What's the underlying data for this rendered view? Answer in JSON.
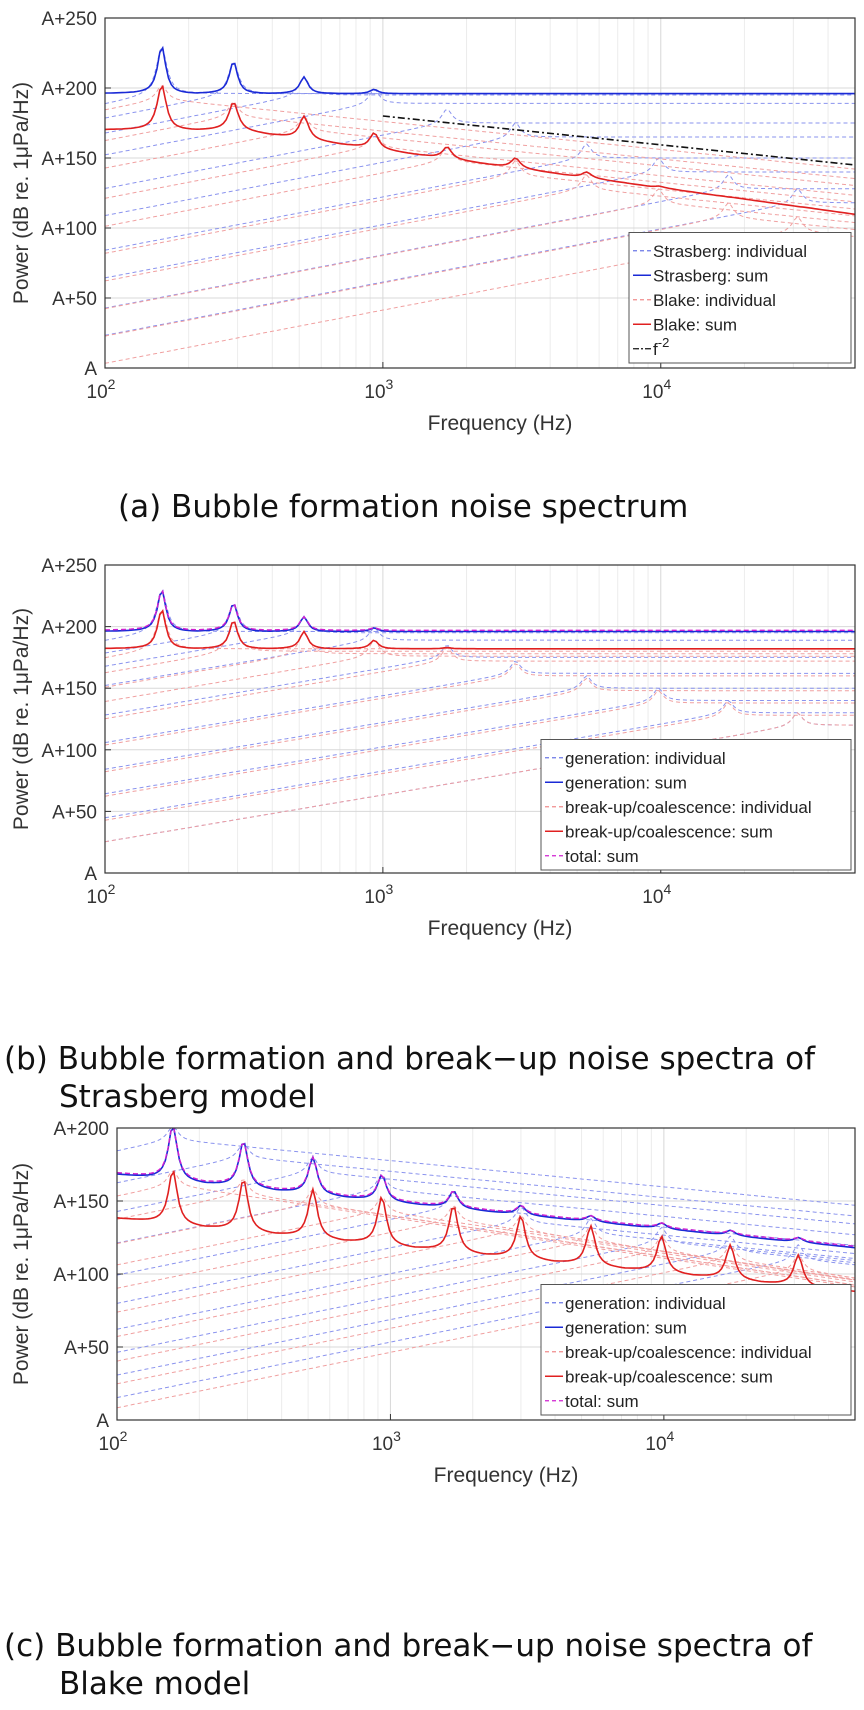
{
  "chart_data": [
    {
      "type": "line",
      "panel": "a",
      "title": "",
      "caption_prefix": "(a)",
      "caption_lines": [
        "Bubble formation noise spectrum"
      ],
      "xlabel": "Frequency (Hz)",
      "ylabel": "Power (dB re. 1μPa/Hz)",
      "xscale": "log",
      "xlim": [
        100,
        50000
      ],
      "ylim": [
        0,
        250
      ],
      "xticks": [
        {
          "value": 100,
          "base": "10",
          "exp": "2"
        },
        {
          "value": 1000,
          "base": "10",
          "exp": "3"
        },
        {
          "value": 10000,
          "base": "10",
          "exp": "4"
        }
      ],
      "yticks": [
        {
          "value": 0,
          "label": "A"
        },
        {
          "value": 50,
          "label": "A+50"
        },
        {
          "value": 100,
          "label": "A+100"
        },
        {
          "value": 150,
          "label": "A+150"
        },
        {
          "value": 200,
          "label": "A+200"
        },
        {
          "value": 250,
          "label": "A+250"
        }
      ],
      "grid": true,
      "legend_position": "lower-right",
      "legend": [
        {
          "label": "Strasberg: individual",
          "color": "#6b78e6",
          "style": "dashed"
        },
        {
          "label": "Strasberg: sum",
          "color": "#1a2ad6",
          "style": "solid"
        },
        {
          "label": "Blake: individual",
          "color": "#f08c8c",
          "style": "dashed"
        },
        {
          "label": "Blake: sum",
          "color": "#e02020",
          "style": "solid"
        },
        {
          "label": "f",
          "sup": "-2",
          "color": "#111111",
          "style": "dashdot"
        }
      ],
      "modes_hz": [
        160,
        290,
        520,
        930,
        1700,
        3000,
        5400,
        9800,
        17500,
        31000
      ],
      "strasberg": {
        "individual_color": "#8a93ee",
        "sum_color": "#1a2ad6",
        "individual_peaks": [
          230,
          219,
          208,
          199,
          185,
          175,
          160,
          150,
          138,
          128
        ],
        "individual_plateaus": [
          196,
          196,
          195,
          195,
          190,
          186,
          180,
          176,
          170,
          165
        ],
        "sum_peaks": [
          230,
          219,
          208,
          199
        ],
        "sum_plateau": 196
      },
      "blake": {
        "individual_color": "#f0a0a0",
        "sum_color": "#e02020",
        "individual_peaks": [
          202,
          190,
          180,
          168,
          158,
          148,
          138,
          128,
          118,
          108
        ],
        "sum_peaks": [
          202,
          190,
          180,
          168,
          158,
          150,
          140,
          130,
          122,
          115
        ],
        "sum_at_xmax": 122
      },
      "f_minus2": {
        "x": [
          1000,
          50000
        ],
        "y": [
          180,
          145
        ],
        "color": "#111111"
      }
    },
    {
      "type": "line",
      "panel": "b",
      "title": "",
      "caption_prefix": "(b)",
      "caption_lines": [
        "Bubble formation and break−up noise spectra of",
        "Strasberg model"
      ],
      "xlabel": "Frequency (Hz)",
      "ylabel": "Power (dB re. 1μPa/Hz)",
      "xscale": "log",
      "xlim": [
        100,
        50000
      ],
      "ylim": [
        0,
        250
      ],
      "xticks": [
        {
          "value": 100,
          "base": "10",
          "exp": "2"
        },
        {
          "value": 1000,
          "base": "10",
          "exp": "3"
        },
        {
          "value": 10000,
          "base": "10",
          "exp": "4"
        }
      ],
      "yticks": [
        {
          "value": 0,
          "label": "A"
        },
        {
          "value": 50,
          "label": "A+50"
        },
        {
          "value": 100,
          "label": "A+100"
        },
        {
          "value": 150,
          "label": "A+150"
        },
        {
          "value": 200,
          "label": "A+200"
        },
        {
          "value": 250,
          "label": "A+250"
        }
      ],
      "grid": true,
      "legend_position": "lower-right",
      "legend": [
        {
          "label": "generation: individual",
          "color": "#6b78e6",
          "style": "dashed"
        },
        {
          "label": "generation: sum",
          "color": "#1a2ad6",
          "style": "solid"
        },
        {
          "label": "break-up/coalescence: individual",
          "color": "#f08c8c",
          "style": "dashed"
        },
        {
          "label": "break-up/coalescence: sum",
          "color": "#e02020",
          "style": "solid"
        },
        {
          "label": "total: sum",
          "color": "#d020d0",
          "style": "dashed"
        }
      ],
      "modes_hz": [
        160,
        290,
        520,
        930,
        1700,
        3000,
        5400,
        9800,
        17500,
        31000
      ],
      "generation": {
        "individual_color": "#8a93ee",
        "sum_color": "#1a2ad6",
        "individual_peaks": [
          230,
          219,
          208,
          199,
          185,
          172,
          160,
          150,
          140,
          130
        ],
        "individual_plateaus": [
          196,
          196,
          195,
          195,
          190,
          186,
          180,
          176,
          170,
          165
        ],
        "sum_peaks": [
          230,
          219,
          208,
          199
        ],
        "sum_plateau": 196
      },
      "breakup": {
        "individual_color": "#f0a0a0",
        "sum_color": "#e02020",
        "individual_peaks": [
          214,
          205,
          196,
          189,
          183,
          170,
          158,
          148,
          138,
          130
        ],
        "individual_plateaus": [
          182,
          180,
          178,
          176,
          172,
          166,
          160,
          156,
          150,
          146
        ],
        "sum_peaks": [
          214,
          205,
          196,
          189,
          183
        ],
        "sum_plateau": 182
      },
      "total": {
        "color": "#d020d0",
        "peaks": [
          230,
          219,
          208,
          199
        ],
        "plateau": 197
      }
    },
    {
      "type": "line",
      "panel": "c",
      "title": "",
      "caption_prefix": "(c)",
      "caption_lines": [
        "Bubble formation and break−up noise spectra of",
        "Blake model"
      ],
      "xlabel": "Frequency (Hz)",
      "ylabel": "Power (dB re. 1μPa/Hz)",
      "xscale": "log",
      "xlim": [
        100,
        50000
      ],
      "ylim": [
        0,
        200
      ],
      "xticks": [
        {
          "value": 100,
          "base": "10",
          "exp": "2"
        },
        {
          "value": 1000,
          "base": "10",
          "exp": "3"
        },
        {
          "value": 10000,
          "base": "10",
          "exp": "4"
        }
      ],
      "yticks": [
        {
          "value": 0,
          "label": "A"
        },
        {
          "value": 50,
          "label": "A+50"
        },
        {
          "value": 100,
          "label": "A+100"
        },
        {
          "value": 150,
          "label": "A+150"
        },
        {
          "value": 200,
          "label": "A+200"
        }
      ],
      "grid": true,
      "legend_position": "lower-right",
      "legend": [
        {
          "label": "generation: individual",
          "color": "#6b78e6",
          "style": "dashed"
        },
        {
          "label": "generation: sum",
          "color": "#1a2ad6",
          "style": "solid"
        },
        {
          "label": "break-up/coalescence: individual",
          "color": "#f08c8c",
          "style": "dashed"
        },
        {
          "label": "break-up/coalescence: sum",
          "color": "#e02020",
          "style": "solid"
        },
        {
          "label": "total: sum",
          "color": "#d020d0",
          "style": "dashed"
        }
      ],
      "modes_hz": [
        160,
        290,
        520,
        930,
        1700,
        3000,
        5400,
        9800,
        17500,
        31000
      ],
      "generation": {
        "individual_color": "#8a93ee",
        "sum_color": "#1a2ad6",
        "individual_peaks": [
          202,
          190,
          180,
          168,
          156,
          146,
          138,
          132,
          126,
          120
        ],
        "sum_peaks": [
          202,
          191,
          180,
          168,
          157,
          147,
          140,
          135,
          130,
          125
        ],
        "sum_at_xmax": 118
      },
      "breakup": {
        "individual_color": "#f0a0a0",
        "sum_color": "#e02020",
        "individual_peaks": [
          171,
          165,
          158,
          153,
          147,
          140,
          133,
          126,
          120,
          113
        ],
        "sum_peaks": [
          171,
          165,
          158,
          153,
          147,
          140,
          133,
          126,
          120,
          113
        ],
        "sum_at_xmax": 88
      },
      "total": {
        "color": "#d020d0",
        "peaks": [
          202,
          191,
          180,
          168,
          157,
          147,
          140,
          135,
          130,
          125
        ],
        "at_xmax": 119
      }
    }
  ]
}
